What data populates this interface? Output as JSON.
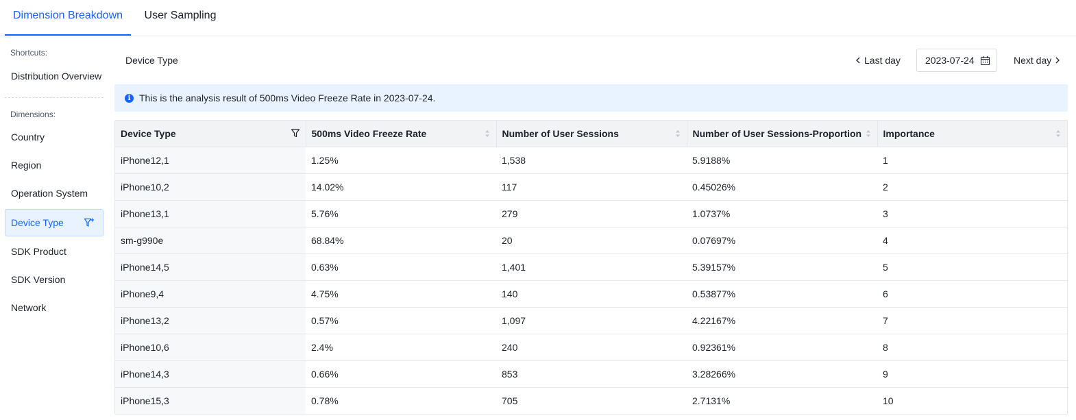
{
  "tabs": [
    {
      "label": "Dimension Breakdown",
      "active": true
    },
    {
      "label": "User Sampling",
      "active": false
    }
  ],
  "sidebar": {
    "shortcuts_label": "Shortcuts:",
    "shortcut_items": [
      "Distribution Overview"
    ],
    "dimensions_label": "Dimensions:",
    "dimension_items": [
      "Country",
      "Region",
      "Operation System",
      "Device Type",
      "SDK Product",
      "SDK Version",
      "Network"
    ],
    "active_item": "Device Type"
  },
  "header": {
    "title": "Device Type",
    "prev_label": "Last day",
    "date": "2023-07-24",
    "next_label": "Next day"
  },
  "alert": {
    "text": "This is the analysis result of 500ms Video Freeze Rate in 2023-07-24."
  },
  "table": {
    "columns": [
      "Device Type",
      "500ms Video Freeze Rate",
      "Number of User Sessions",
      "Number of User Sessions-Proportion",
      "Importance"
    ],
    "rows": [
      [
        "iPhone12,1",
        "1.25%",
        "1,538",
        "5.9188%",
        "1"
      ],
      [
        "iPhone10,2",
        "14.02%",
        "117",
        "0.45026%",
        "2"
      ],
      [
        "iPhone13,1",
        "5.76%",
        "279",
        "1.0737%",
        "3"
      ],
      [
        "sm-g990e",
        "68.84%",
        "20",
        "0.07697%",
        "4"
      ],
      [
        "iPhone14,5",
        "0.63%",
        "1,401",
        "5.39157%",
        "5"
      ],
      [
        "iPhone9,4",
        "4.75%",
        "140",
        "0.53877%",
        "6"
      ],
      [
        "iPhone13,2",
        "0.57%",
        "1,097",
        "4.22167%",
        "7"
      ],
      [
        "iPhone10,6",
        "2.4%",
        "240",
        "0.92361%",
        "8"
      ],
      [
        "iPhone14,3",
        "0.66%",
        "853",
        "3.28266%",
        "9"
      ],
      [
        "iPhone15,3",
        "0.78%",
        "705",
        "2.7131%",
        "10"
      ]
    ]
  },
  "colors": {
    "accent": "#1664ff",
    "alert_bg": "#e8f3ff"
  }
}
